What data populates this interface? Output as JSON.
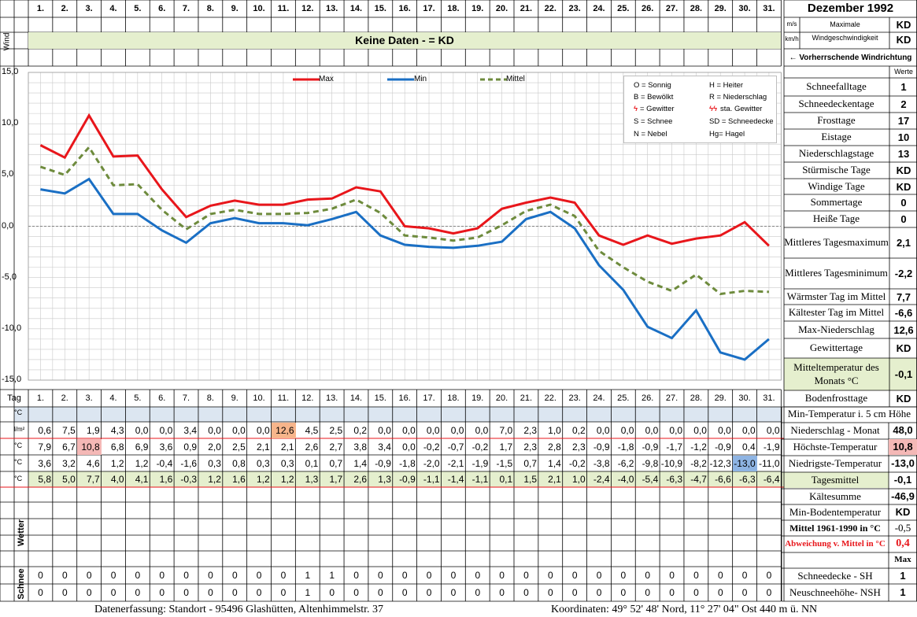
{
  "header": {
    "month_title": "Dezember 1992",
    "wind_label": "Wind",
    "tag_label": "Tag",
    "days": [
      "1.",
      "2.",
      "3.",
      "4.",
      "5.",
      "6.",
      "7.",
      "8.",
      "9.",
      "10.",
      "11.",
      "12.",
      "13.",
      "14.",
      "15.",
      "16.",
      "17.",
      "18.",
      "19.",
      "20.",
      "21.",
      "22.",
      "23.",
      "24.",
      "25.",
      "26.",
      "27.",
      "28.",
      "29.",
      "30.",
      "31."
    ]
  },
  "wind": {
    "no_data_text": "Keine Daten -  = KD",
    "unit_ms": "m/s",
    "unit_kmh": "km/h",
    "max_label_1": "Maximale",
    "max_label_2": "Windgeschwindigkeit",
    "max_ms_value": "KD",
    "max_kmh_value": "KD",
    "direction_label": "← Vorherrschende Windrichtung",
    "werte_label": "Werte"
  },
  "legend": {
    "max": "Max",
    "min": "Min",
    "mittel": "Mittel",
    "colors": {
      "max": "#e8161b",
      "min": "#1a6fc4",
      "mittel": "#6e8b3d"
    }
  },
  "weather_codes": [
    "O = Sonnig",
    "H = Heiter",
    "B = Bewölkt",
    "R = Niederschlag",
    "= Gewitter",
    "sta. Gewitter",
    "S = Schnee",
    "SD = Schneedecke",
    "N = Nebel",
    "Hg= Hagel"
  ],
  "chart_data": {
    "type": "line",
    "x": [
      1,
      2,
      3,
      4,
      5,
      6,
      7,
      8,
      9,
      10,
      11,
      12,
      13,
      14,
      15,
      16,
      17,
      18,
      19,
      20,
      21,
      22,
      23,
      24,
      25,
      26,
      27,
      28,
      29,
      30,
      31
    ],
    "series": [
      {
        "name": "Max",
        "values": [
          7.9,
          6.7,
          10.8,
          6.8,
          6.9,
          3.6,
          0.9,
          2.0,
          2.5,
          2.1,
          2.1,
          2.6,
          2.7,
          3.8,
          3.4,
          0.0,
          -0.2,
          -0.7,
          -0.2,
          1.7,
          2.3,
          2.8,
          2.3,
          -0.9,
          -1.8,
          -0.9,
          -1.7,
          -1.2,
          -0.9,
          0.4,
          -1.9
        ]
      },
      {
        "name": "Min",
        "values": [
          3.6,
          3.2,
          4.6,
          1.2,
          1.2,
          -0.4,
          -1.6,
          0.3,
          0.8,
          0.3,
          0.3,
          0.1,
          0.7,
          1.4,
          -0.9,
          -1.8,
          -2.0,
          -2.1,
          -1.9,
          -1.5,
          0.7,
          1.4,
          -0.2,
          -3.8,
          -6.2,
          -9.8,
          -10.9,
          -8.2,
          -12.3,
          -13.0,
          -11.0
        ]
      },
      {
        "name": "Mittel",
        "values": [
          5.8,
          5.0,
          7.7,
          4.0,
          4.1,
          1.6,
          -0.3,
          1.2,
          1.6,
          1.2,
          1.2,
          1.3,
          1.7,
          2.6,
          1.3,
          -0.9,
          -1.1,
          -1.4,
          -1.1,
          0.1,
          1.5,
          2.1,
          1.0,
          -2.4,
          -4.0,
          -5.4,
          -6.3,
          -4.7,
          -6.6,
          -6.3,
          -6.4
        ]
      }
    ],
    "ylim": [
      -15,
      15
    ],
    "yticks": [
      "15,0",
      "10,0",
      "5,0",
      "0,0",
      "-5,0",
      "-10,0",
      "-15,0"
    ],
    "grid": true,
    "legend_position": "top"
  },
  "table": {
    "unit_c": "°C",
    "unit_lm2": "l/m²",
    "niederschlag": [
      "0,6",
      "7,5",
      "1,9",
      "4,3",
      "0,0",
      "0,0",
      "3,4",
      "0,0",
      "0,0",
      "0,0",
      "12,6",
      "4,5",
      "2,5",
      "0,2",
      "0,0",
      "0,0",
      "0,0",
      "0,0",
      "0,0",
      "7,0",
      "2,3",
      "1,0",
      "0,2",
      "0,0",
      "0,0",
      "0,0",
      "0,0",
      "0,0",
      "0,0",
      "0,0",
      "0,0"
    ],
    "hoechst": [
      "7,9",
      "6,7",
      "10,8",
      "6,8",
      "6,9",
      "3,6",
      "0,9",
      "2,0",
      "2,5",
      "2,1",
      "2,1",
      "2,6",
      "2,7",
      "3,8",
      "3,4",
      "0,0",
      "-0,2",
      "-0,7",
      "-0,2",
      "1,7",
      "2,3",
      "2,8",
      "2,3",
      "-0,9",
      "-1,8",
      "-0,9",
      "-1,7",
      "-1,2",
      "-0,9",
      "0,4",
      "-1,9"
    ],
    "niedrigst": [
      "3,6",
      "3,2",
      "4,6",
      "1,2",
      "1,2",
      "-0,4",
      "-1,6",
      "0,3",
      "0,8",
      "0,3",
      "0,3",
      "0,1",
      "0,7",
      "1,4",
      "-0,9",
      "-1,8",
      "-2,0",
      "-2,1",
      "-1,9",
      "-1,5",
      "0,7",
      "1,4",
      "-0,2",
      "-3,8",
      "-6,2",
      "-9,8",
      "-10,9",
      "-8,2",
      "-12,3",
      "-13,0",
      "-11,0"
    ],
    "mittel": [
      "5,8",
      "5,0",
      "7,7",
      "4,0",
      "4,1",
      "1,6",
      "-0,3",
      "1,2",
      "1,6",
      "1,2",
      "1,2",
      "1,3",
      "1,7",
      "2,6",
      "1,3",
      "-0,9",
      "-1,1",
      "-1,4",
      "-1,1",
      "0,1",
      "1,5",
      "2,1",
      "1,0",
      "-2,4",
      "-4,0",
      "-5,4",
      "-6,3",
      "-4,7",
      "-6,6",
      "-6,3",
      "-6,4"
    ],
    "highlight": {
      "niederschlag_day": 11,
      "hoechst_day": 3,
      "niedrigst_day": 30
    },
    "wetter_label": "Wetter",
    "schnee_label": "Schnee",
    "schneedecke": [
      "0",
      "0",
      "0",
      "0",
      "0",
      "0",
      "0",
      "0",
      "0",
      "0",
      "0",
      "1",
      "1",
      "0",
      "0",
      "0",
      "0",
      "0",
      "0",
      "0",
      "0",
      "0",
      "0",
      "0",
      "0",
      "0",
      "0",
      "0",
      "0",
      "0",
      "0"
    ],
    "neuschnee": [
      "0",
      "0",
      "0",
      "0",
      "0",
      "0",
      "0",
      "0",
      "0",
      "0",
      "0",
      "1",
      "0",
      "0",
      "0",
      "0",
      "0",
      "0",
      "0",
      "0",
      "0",
      "0",
      "0",
      "0",
      "0",
      "0",
      "0",
      "0",
      "0",
      "0",
      "0"
    ]
  },
  "stats": [
    {
      "label": "Schneefalltage",
      "value": "1"
    },
    {
      "label": "Schneedeckentage",
      "value": "2"
    },
    {
      "label": "Frosttage",
      "value": "17"
    },
    {
      "label": "Eistage",
      "value": "10"
    },
    {
      "label": "Niederschlagstage",
      "value": "13"
    },
    {
      "label": "Stürmische Tage",
      "value": "KD"
    },
    {
      "label": "Windige Tage",
      "value": "KD"
    },
    {
      "label": "Sommertage",
      "value": "0"
    },
    {
      "label": "Heiße Tage",
      "value": "0"
    },
    {
      "label": "Mittleres Tagesmaximum",
      "value": "2,1"
    },
    {
      "label": "Mittleres Tagesminimum",
      "value": "-2,2"
    },
    {
      "label": "Wärmster Tag im Mittel",
      "value": "7,7"
    },
    {
      "label": "Kältester Tag im Mittel",
      "value": "-6,6"
    },
    {
      "label": "Max-Niederschlag",
      "value": "12,6"
    },
    {
      "label": "Gewittertage",
      "value": "KD"
    },
    {
      "label": "Mitteltemperatur des Monats °C",
      "value": "-0,1"
    },
    {
      "label": "Bodenfrosttage",
      "value": "KD"
    }
  ],
  "right_table": {
    "min_temp_5cm": "Min-Temperatur i. 5 cm Höhe",
    "niederschlag_monat": {
      "label": "Niederschlag - Monat",
      "value": "48,0"
    },
    "hoechste_temp": {
      "label": "Höchste-Temperatur",
      "value": "10,8"
    },
    "niedrigste_temp": {
      "label": "Niedrigste-Temperatur",
      "value": "-13,0"
    },
    "tagesmittel": {
      "label": "Tagesmittel",
      "value": "-0,1"
    },
    "kaeltesumme": {
      "label": "Kältesumme",
      "value": "-46,9"
    },
    "min_boden": {
      "label": "Min-Bodentemperatur",
      "value": "KD"
    },
    "mittel_1961": {
      "label": "Mittel 1961-1990 in °C",
      "value": "-0,5"
    },
    "abweichung": {
      "label": "Abweichung v. Mittel in °C",
      "value": "0,4"
    },
    "max_label": "Max",
    "schneedecke_sh": {
      "label": "Schneedecke -   SH",
      "value": "1"
    },
    "neuschnee_nsh": {
      "label": "Neuschneehöhe- NSH",
      "value": "1"
    }
  },
  "footer": {
    "left": "Datenerfassung:  Standort -  95496  Glashütten, Altenhimmelstr. 37",
    "right": "Koordinaten:  49° 52' 48' Nord,  11° 27' 04\" Ost   440 m ü. NN"
  }
}
